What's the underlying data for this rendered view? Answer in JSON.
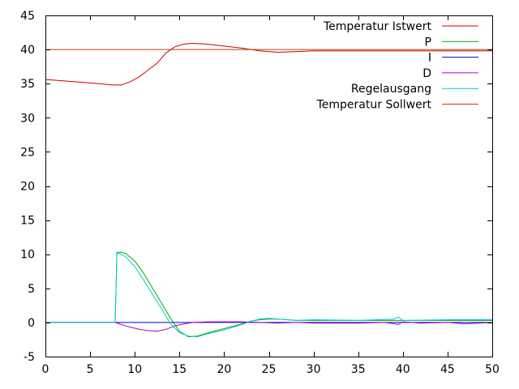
{
  "chart_data": {
    "type": "line",
    "title": "",
    "xlabel": "",
    "ylabel": "",
    "xlim": [
      0,
      50
    ],
    "ylim": [
      -5,
      45
    ],
    "xticks": [
      0,
      5,
      10,
      15,
      20,
      25,
      30,
      35,
      40,
      45,
      50
    ],
    "yticks": [
      -5,
      0,
      5,
      10,
      15,
      20,
      25,
      30,
      35,
      40,
      45
    ],
    "grid": false,
    "legend_position": "top-right",
    "series": [
      {
        "name": "Temperatur Istwert",
        "color": "#cc0000",
        "points": [
          [
            0,
            35.6
          ],
          [
            2,
            35.4
          ],
          [
            4,
            35.2
          ],
          [
            6,
            35.0
          ],
          [
            7.5,
            34.8
          ],
          [
            8.5,
            34.8
          ],
          [
            9.5,
            35.3
          ],
          [
            10.5,
            36.0
          ],
          [
            11.5,
            37.0
          ],
          [
            12.5,
            38.0
          ],
          [
            13.5,
            39.5
          ],
          [
            14.5,
            40.4
          ],
          [
            15.5,
            40.8
          ],
          [
            16.5,
            40.9
          ],
          [
            18,
            40.8
          ],
          [
            20,
            40.5
          ],
          [
            22,
            40.2
          ],
          [
            24,
            39.8
          ],
          [
            26,
            39.6
          ],
          [
            28,
            39.7
          ],
          [
            30,
            39.8
          ],
          [
            32,
            39.8
          ],
          [
            35,
            39.8
          ],
          [
            38,
            39.8
          ],
          [
            40,
            39.8
          ],
          [
            43,
            39.8
          ],
          [
            46,
            39.8
          ],
          [
            50,
            39.8
          ]
        ]
      },
      {
        "name": "P",
        "color": "#00aa00",
        "points": [
          [
            0,
            0
          ],
          [
            7.8,
            0
          ],
          [
            8,
            10.3
          ],
          [
            8.5,
            10.3
          ],
          [
            9,
            10.1
          ],
          [
            10,
            9.0
          ],
          [
            11,
            7.2
          ],
          [
            12,
            5.0
          ],
          [
            13,
            2.8
          ],
          [
            14,
            0.6
          ],
          [
            15,
            -1.3
          ],
          [
            16,
            -2.1
          ],
          [
            17,
            -2.0
          ],
          [
            18,
            -1.6
          ],
          [
            20,
            -0.9
          ],
          [
            22,
            -0.2
          ],
          [
            23,
            0.2
          ],
          [
            24,
            0.4
          ],
          [
            25,
            0.5
          ],
          [
            26,
            0.5
          ],
          [
            27,
            0.4
          ],
          [
            28,
            0.3
          ],
          [
            30,
            0.3
          ],
          [
            35,
            0.3
          ],
          [
            40,
            0.3
          ],
          [
            45,
            0.3
          ],
          [
            50,
            0.3
          ]
        ]
      },
      {
        "name": "I",
        "color": "#0000cc",
        "points": [
          [
            0,
            0
          ],
          [
            10,
            0
          ],
          [
            20,
            0
          ],
          [
            30,
            0
          ],
          [
            40,
            0
          ],
          [
            50,
            0
          ]
        ]
      },
      {
        "name": "D",
        "color": "#aa00cc",
        "points": [
          [
            0,
            0
          ],
          [
            7.8,
            0
          ],
          [
            8.5,
            -0.3
          ],
          [
            9.5,
            -0.7
          ],
          [
            10.5,
            -1.0
          ],
          [
            11.5,
            -1.2
          ],
          [
            12.5,
            -1.3
          ],
          [
            13.5,
            -1.0
          ],
          [
            14.5,
            -0.5
          ],
          [
            15.5,
            -0.2
          ],
          [
            16.5,
            0
          ],
          [
            18,
            0.1
          ],
          [
            20,
            0.1
          ],
          [
            22,
            0.1
          ],
          [
            24,
            0
          ],
          [
            26,
            -0.1
          ],
          [
            28,
            0
          ],
          [
            30,
            -0.1
          ],
          [
            35,
            -0.1
          ],
          [
            38,
            0
          ],
          [
            39.5,
            -0.3
          ],
          [
            40,
            0.1
          ],
          [
            42,
            -0.1
          ],
          [
            45,
            0
          ],
          [
            47,
            -0.2
          ],
          [
            50,
            0
          ]
        ]
      },
      {
        "name": "Regelausgang",
        "color": "#00cccc",
        "points": [
          [
            0,
            0
          ],
          [
            7.8,
            0
          ],
          [
            8,
            10.2
          ],
          [
            8.5,
            10.0
          ],
          [
            9,
            9.6
          ],
          [
            10,
            8.2
          ],
          [
            11,
            6.2
          ],
          [
            12,
            4.1
          ],
          [
            13,
            2.0
          ],
          [
            14,
            -0.2
          ],
          [
            15,
            -1.5
          ],
          [
            16,
            -2.0
          ],
          [
            17,
            -2.1
          ],
          [
            18,
            -1.7
          ],
          [
            20,
            -1.1
          ],
          [
            22,
            -0.3
          ],
          [
            23,
            0.2
          ],
          [
            24,
            0.5
          ],
          [
            25,
            0.6
          ],
          [
            26,
            0.5
          ],
          [
            27,
            0.4
          ],
          [
            28,
            0.3
          ],
          [
            30,
            0.4
          ],
          [
            35,
            0.3
          ],
          [
            39,
            0.5
          ],
          [
            39.5,
            0.8
          ],
          [
            40,
            0.3
          ],
          [
            45,
            0.4
          ],
          [
            50,
            0.4
          ]
        ]
      },
      {
        "name": "Temperatur Sollwert",
        "color": "#c04000",
        "points": [
          [
            0,
            40
          ],
          [
            50,
            40
          ]
        ]
      }
    ]
  }
}
